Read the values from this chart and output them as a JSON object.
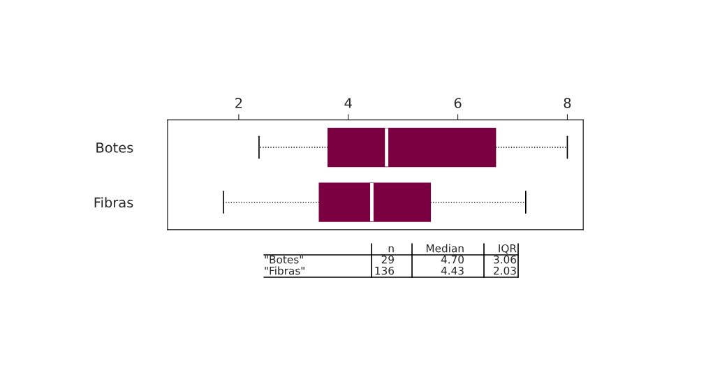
{
  "chart_data": {
    "type": "box",
    "orientation": "horizontal",
    "categories": [
      "Botes",
      "Fibras"
    ],
    "boxes": [
      {
        "low": 2.37,
        "q1": 3.63,
        "median": 4.7,
        "q3": 6.69,
        "high": 8.0
      },
      {
        "low": 1.72,
        "q1": 3.47,
        "median": 4.43,
        "q3": 5.5,
        "high": 7.24
      }
    ],
    "color": "#7b0041",
    "xlim": [
      0.7,
      8.29
    ],
    "xticks": [
      2,
      4,
      6,
      8
    ],
    "grid": false,
    "annotations": [
      "\tn\tMedian\tIQR",
      "\"Botes\"\t29\t4.70\t3.06",
      "\"Fibras\"\t136\t4.43\t2.03"
    ]
  }
}
